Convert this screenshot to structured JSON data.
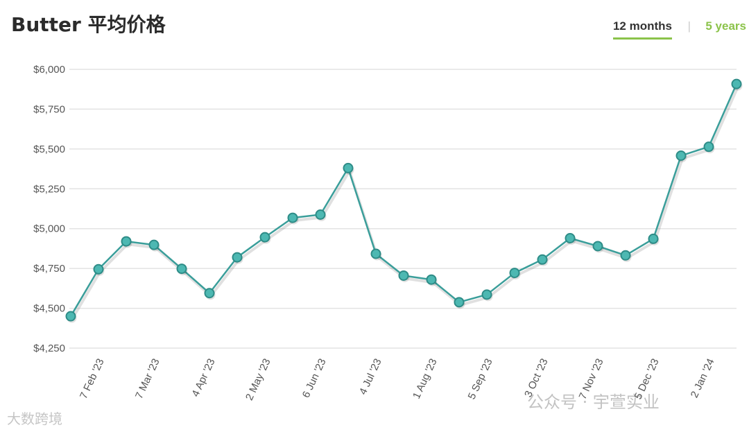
{
  "title": "Butter 平均价格",
  "tabs": [
    {
      "label": "12 months",
      "active": true
    },
    {
      "label": "5 years",
      "active": false
    }
  ],
  "tab_separator": "|",
  "watermarks": {
    "left": "大数跨境",
    "right": "公众号 · 宇萱实业"
  },
  "colors": {
    "line": "#3a9e9a",
    "marker_fill": "#4db8b2",
    "accent": "#8bc34a",
    "grid": "#e3e3e3"
  },
  "chart_data": {
    "type": "line",
    "title": "Butter 平均价格",
    "xlabel": "",
    "ylabel": "",
    "ylim": [
      4250,
      6000
    ],
    "yticks": [
      4250,
      4500,
      4750,
      5000,
      5250,
      5500,
      5750,
      6000
    ],
    "ytick_labels": [
      "$4,250",
      "$4,500",
      "$4,750",
      "$5,000",
      "$5,250",
      "$5,500",
      "$5,750",
      "$6,000"
    ],
    "xtick_labels": [
      "7 Feb '23",
      "7 Mar '23",
      "4 Apr '23",
      "2 May '23",
      "6 Jun '23",
      "4 Jul '23",
      "1 Aug '23",
      "5 Sep '23",
      "3 Oct '23",
      "7 Nov '23",
      "5 Dec '23",
      "2 Jan '24"
    ],
    "grid": true,
    "legend": false,
    "series": [
      {
        "values": [
          4450,
          4745,
          4920,
          4898,
          4748,
          4595,
          4820,
          4946,
          5068,
          5088,
          5380,
          4842,
          4705,
          4680,
          4538,
          4586,
          4722,
          4806,
          4940,
          4890,
          4832,
          4936,
          5458,
          5514,
          5908
        ]
      }
    ]
  }
}
